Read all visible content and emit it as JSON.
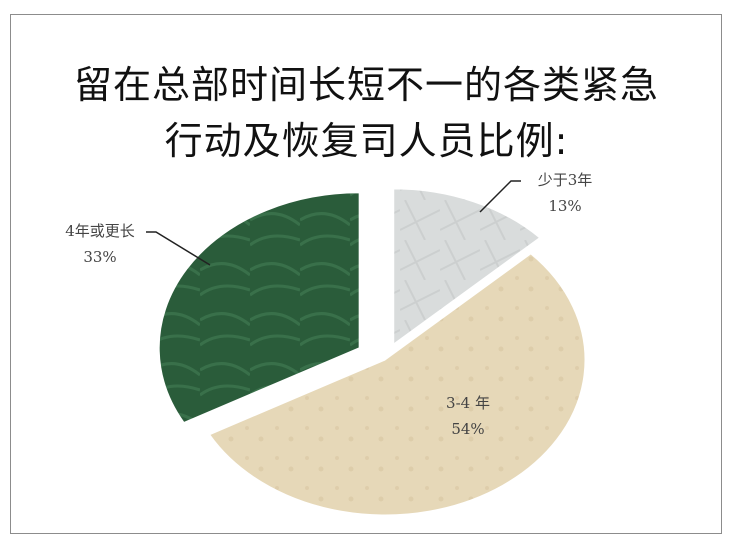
{
  "chart_data": {
    "type": "pie",
    "title_lines": [
      "留在总部时间长短不一的各类紧急",
      "行动及恢复司人员比例:"
    ],
    "slices": [
      {
        "label": "少于3年",
        "percent_label": "13%",
        "value": 13,
        "color": "#d9dcdc"
      },
      {
        "label": "3-4 年",
        "percent_label": "54%",
        "value": 54,
        "color": "#e6d8b8"
      },
      {
        "label": "4年或更长",
        "percent_label": "33%",
        "value": 33,
        "color": "#2a5c3a"
      }
    ]
  }
}
